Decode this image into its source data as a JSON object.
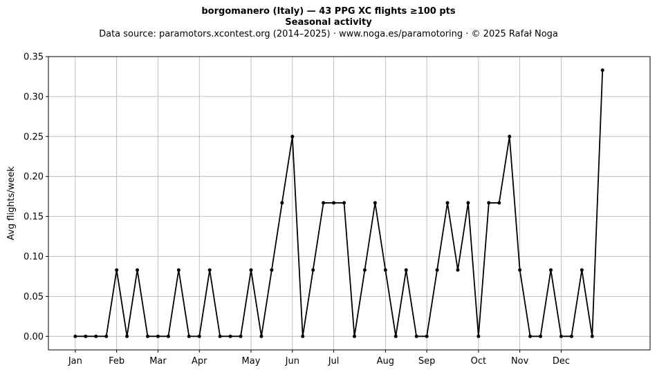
{
  "title": "borgomanero (Italy)  —  43 PPG XC flights ≥100 pts",
  "subtitle": "Seasonal activity",
  "source": "Data source: paramotors.xcontest.org (2014–2025)  ·  www.noga.es/paramotoring  ·  © 2025 Rafał Noga",
  "chart_data": {
    "type": "line",
    "ylabel": "Avg flights/week",
    "xlabel": "",
    "ylim": [
      -0.017,
      0.35
    ],
    "xlim": [
      -2.6,
      55.6
    ],
    "grid": true,
    "line_color": "#000000",
    "x_ticks": [
      {
        "label": "Jan",
        "x": 0
      },
      {
        "label": "Feb",
        "x": 4
      },
      {
        "label": "Mar",
        "x": 8
      },
      {
        "label": "Apr",
        "x": 12
      },
      {
        "label": "May",
        "x": 17
      },
      {
        "label": "Jun",
        "x": 21
      },
      {
        "label": "Jul",
        "x": 25
      },
      {
        "label": "Aug",
        "x": 30
      },
      {
        "label": "Sep",
        "x": 34
      },
      {
        "label": "Oct",
        "x": 39
      },
      {
        "label": "Nov",
        "x": 43
      },
      {
        "label": "Dec",
        "x": 47
      }
    ],
    "y_ticks": [
      "0.00",
      "0.05",
      "0.10",
      "0.15",
      "0.20",
      "0.25",
      "0.30",
      "0.35"
    ],
    "series": [
      {
        "x": [
          0,
          1,
          2,
          3,
          4,
          5,
          6,
          7,
          8,
          9,
          10,
          11,
          12,
          13,
          14,
          15,
          16,
          17,
          18,
          19,
          20,
          21,
          22,
          23,
          24,
          25,
          26,
          27,
          28,
          29,
          30,
          31,
          32,
          33,
          34,
          35,
          36,
          37,
          38,
          39,
          40,
          41,
          42,
          43,
          44,
          45,
          46,
          47,
          48,
          49,
          50,
          51
        ],
        "values": [
          0,
          0,
          0,
          0,
          0.083,
          0,
          0.083,
          0,
          0,
          0,
          0.083,
          0,
          0,
          0.083,
          0,
          0,
          0,
          0.083,
          0,
          0.083,
          0.167,
          0.25,
          0,
          0.083,
          0.167,
          0.167,
          0.167,
          0,
          0.083,
          0.167,
          0.083,
          0,
          0.083,
          0,
          0,
          0.083,
          0.167,
          0.083,
          0.167,
          0,
          0.167,
          0.167,
          0.25,
          0.083,
          0,
          0,
          0.083,
          0,
          0,
          0.083,
          0,
          0.333
        ]
      }
    ]
  }
}
